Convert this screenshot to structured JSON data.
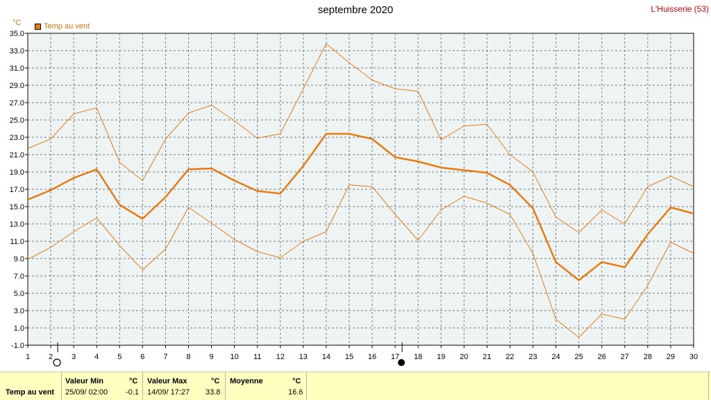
{
  "header": {
    "title": "septembre 2020",
    "station": "L'Huisserie (53)",
    "unit": "°C"
  },
  "legend": {
    "label": "Temp au vent",
    "color": "#e87b10"
  },
  "chart_data": {
    "type": "line",
    "x": [
      1,
      2,
      3,
      4,
      5,
      6,
      7,
      8,
      9,
      10,
      11,
      12,
      13,
      14,
      15,
      16,
      17,
      18,
      19,
      20,
      21,
      22,
      23,
      24,
      25,
      26,
      27,
      28,
      29,
      30
    ],
    "xlim": [
      1,
      30
    ],
    "ylim": [
      -1.0,
      35.0
    ],
    "ytick_labels": [
      "-1.0",
      "1.0",
      "3.0",
      "5.0",
      "7.0",
      "9.0",
      "11.0",
      "13.0",
      "15.0",
      "17.0",
      "19.0",
      "21.0",
      "23.0",
      "25.0",
      "27.0",
      "29.0",
      "31.0",
      "33.0",
      "35.0"
    ],
    "xtick_labels": [
      "1",
      "2",
      "3",
      "4",
      "5",
      "6",
      "7",
      "8",
      "9",
      "10",
      "11",
      "12",
      "13",
      "14",
      "15",
      "16",
      "17",
      "18",
      "19",
      "20",
      "21",
      "22",
      "23",
      "24",
      "25",
      "26",
      "27",
      "28",
      "29",
      "30"
    ],
    "grid": true,
    "series": [
      {
        "name": "Temp au vent",
        "role": "max",
        "color": "#e87b10",
        "values": [
          21.7,
          22.8,
          25.7,
          26.4,
          20.1,
          18.0,
          22.8,
          25.8,
          26.7,
          24.9,
          22.9,
          23.4,
          28.6,
          33.8,
          31.6,
          29.6,
          28.6,
          28.3,
          22.7,
          24.3,
          24.5,
          21.0,
          19.0,
          13.8,
          12.0,
          14.6,
          13.0,
          17.3,
          18.5,
          17.3
        ]
      },
      {
        "name": "Temp au vent",
        "role": "mean",
        "color": "#e87b10",
        "values": [
          15.8,
          16.9,
          18.3,
          19.3,
          15.2,
          13.6,
          16.1,
          19.3,
          19.4,
          18.0,
          16.8,
          16.5,
          19.7,
          23.4,
          23.4,
          22.8,
          20.7,
          20.2,
          19.5,
          19.2,
          18.9,
          17.5,
          14.8,
          8.6,
          6.5,
          8.6,
          8.0,
          11.8,
          14.9,
          14.2
        ]
      },
      {
        "name": "Temp au vent",
        "role": "min",
        "color": "#e87b10",
        "values": [
          8.9,
          10.3,
          12.1,
          13.7,
          10.5,
          7.7,
          10.1,
          14.9,
          13.1,
          11.2,
          9.8,
          9.1,
          11.0,
          12.1,
          17.5,
          17.3,
          14.1,
          11.1,
          14.6,
          16.2,
          15.4,
          14.1,
          9.6,
          2.0,
          -0.1,
          2.6,
          2.0,
          5.9,
          10.9,
          9.6
        ]
      }
    ],
    "moon_phases": [
      {
        "day": 2,
        "phase": "full-moon"
      },
      {
        "day": 17,
        "phase": "new-moon"
      }
    ]
  },
  "stats": {
    "row_label": "Temp au vent",
    "min": {
      "header": "Valeur Min",
      "unit": "°C",
      "date": "25/09/  02:00",
      "value": "-0.1"
    },
    "max": {
      "header": "Valeur Max",
      "unit": "°C",
      "date": "14/09/  17:27",
      "value": "33.8"
    },
    "mean": {
      "header": "Moyenne",
      "unit": "°C",
      "value": "16.6"
    }
  }
}
